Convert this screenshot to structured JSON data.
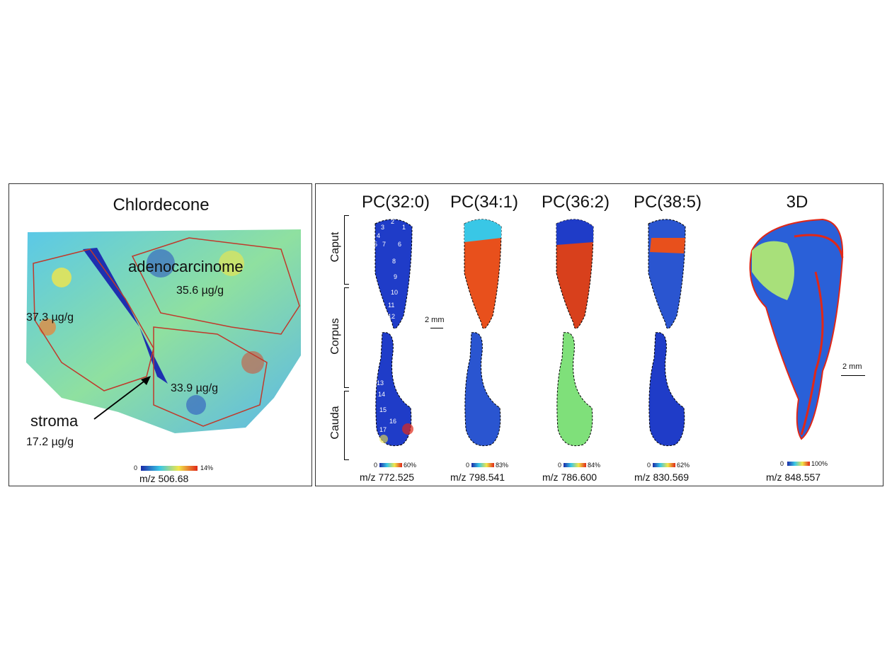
{
  "left_panel": {
    "title": "Chlordecone",
    "regions": {
      "adenocarcinome_label": "adenocarcinome",
      "adenocarcinome_value": "35.6 µg/g",
      "left_value": "37.3 µg/g",
      "lower_value": "33.9 µg/g",
      "stroma_label": "stroma",
      "stroma_value": "17.2 µg/g"
    },
    "colorbar": {
      "min": "0",
      "max": "14%"
    },
    "mz": "m/z 506.68"
  },
  "right_panel": {
    "columns": [
      {
        "title": "PC(32:0)",
        "bar_min": "0",
        "bar_max": "60%",
        "mz": "m/z 772.525"
      },
      {
        "title": "PC(34:1)",
        "bar_min": "0",
        "bar_max": "83%",
        "mz": "m/z 798.541"
      },
      {
        "title": "PC(36:2)",
        "bar_min": "0",
        "bar_max": "84%",
        "mz": "m/z 786.600"
      },
      {
        "title": "PC(38:5)",
        "bar_min": "0",
        "bar_max": "62%",
        "mz": "m/z 830.569"
      }
    ],
    "three_d": {
      "title": "3D",
      "bar_min": "0",
      "bar_max": "100%",
      "mz": "m/z 848.557",
      "scale": "2 mm"
    },
    "row_labels": {
      "caput": "Caput",
      "corpus": "Corpus",
      "cauda": "Cauda"
    },
    "scale_bar": "2 mm",
    "segment_numbers_upper": [
      "1",
      "2",
      "3",
      "4",
      "5",
      "6",
      "7",
      "8",
      "9",
      "10",
      "11",
      "12"
    ],
    "segment_numbers_lower": [
      "13",
      "14",
      "15",
      "16",
      "17"
    ]
  },
  "colors": {
    "low": "#1a2aa8",
    "mid": "#39c7e6",
    "high": "#e02818",
    "outline": "#c0392b"
  }
}
